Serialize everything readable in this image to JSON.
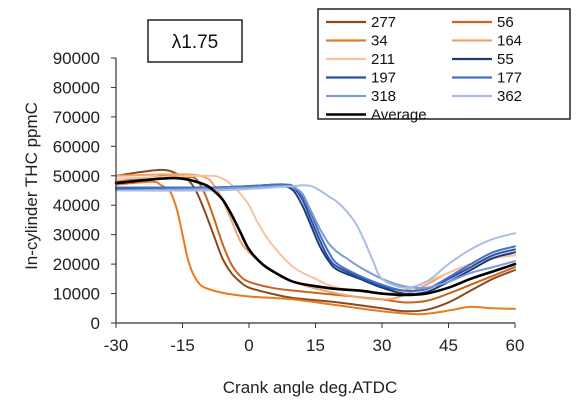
{
  "chart_data": {
    "type": "line",
    "title": "",
    "annotation": "λ1.75",
    "xlabel": "Crank angle deg.ATDC",
    "ylabel": "In-cylinder THC ppmC",
    "xlim": [
      -30,
      60
    ],
    "ylim": [
      0,
      90000
    ],
    "xticks": [
      "-30",
      "-15",
      "0",
      "15",
      "30",
      "45",
      "60"
    ],
    "yticks": [
      "0",
      "10000",
      "20000",
      "30000",
      "40000",
      "50000",
      "60000",
      "70000",
      "80000",
      "90000"
    ],
    "grid": false,
    "legend_position": "top-right",
    "series": [
      {
        "name": "277",
        "color": "#8a4a1e",
        "x": [
          -30,
          -20,
          -16,
          -14,
          -12,
          -10,
          -8,
          -6,
          -4,
          -2,
          0,
          5,
          10,
          20,
          30,
          35,
          40,
          45,
          50,
          55,
          60
        ],
        "y": [
          50000,
          52000,
          50500,
          49000,
          45000,
          38000,
          30000,
          22000,
          17000,
          14000,
          12000,
          10000,
          8500,
          7000,
          5000,
          4000,
          4500,
          7000,
          11000,
          15000,
          18000
        ]
      },
      {
        "name": "56",
        "color": "#c8641e",
        "x": [
          -30,
          -18,
          -14,
          -12,
          -10,
          -8,
          -6,
          -4,
          -2,
          0,
          5,
          10,
          20,
          30,
          35,
          40,
          45,
          50,
          55,
          60
        ],
        "y": [
          48000,
          50000,
          49500,
          49000,
          44000,
          36000,
          27000,
          20000,
          16000,
          14000,
          12000,
          11000,
          9500,
          8000,
          7000,
          7500,
          10000,
          13000,
          16000,
          19000
        ]
      },
      {
        "name": "34",
        "color": "#e87a20",
        "x": [
          -30,
          -22,
          -20,
          -18,
          -17,
          -16,
          -15,
          -14,
          -13,
          -12,
          -11,
          -10,
          -8,
          -5,
          0,
          10,
          20,
          30,
          38,
          42,
          46,
          50,
          55,
          60
        ],
        "y": [
          47000,
          48000,
          47000,
          45000,
          42000,
          37000,
          30000,
          23000,
          18000,
          15000,
          13000,
          12000,
          11000,
          10000,
          9000,
          8000,
          6000,
          4000,
          3000,
          3500,
          4500,
          5500,
          5000,
          4800
        ]
      },
      {
        "name": "164",
        "color": "#f3a36a",
        "x": [
          -30,
          -15,
          -10,
          -8,
          -6,
          -4,
          -2,
          0,
          5,
          10,
          20,
          30,
          35,
          40,
          45,
          50,
          55,
          60
        ],
        "y": [
          50000,
          50500,
          49500,
          47000,
          42000,
          35000,
          28000,
          24000,
          18000,
          14000,
          10000,
          8000,
          9500,
          13000,
          17000,
          20000,
          22000,
          24000
        ]
      },
      {
        "name": "211",
        "color": "#f6c3a2",
        "x": [
          -30,
          -10,
          -6,
          -4,
          -2,
          0,
          2,
          5,
          10,
          15,
          20,
          30,
          35,
          40,
          45,
          50,
          55,
          60
        ],
        "y": [
          49000,
          50000,
          49000,
          47000,
          44000,
          40000,
          34000,
          27000,
          19000,
          15000,
          12000,
          10000,
          11000,
          14000,
          17000,
          20000,
          22000,
          23000
        ]
      },
      {
        "name": "55",
        "color": "#1f3a7a",
        "x": [
          -30,
          -10,
          0,
          6,
          8,
          10,
          12,
          14,
          16,
          18,
          20,
          25,
          30,
          35,
          40,
          45,
          50,
          55,
          60
        ],
        "y": [
          46000,
          46000,
          46500,
          47000,
          46500,
          45000,
          40000,
          33000,
          26000,
          21000,
          18000,
          15000,
          12000,
          10000,
          10500,
          14000,
          18000,
          22000,
          24000
        ]
      },
      {
        "name": "197",
        "color": "#2a4fa0",
        "x": [
          -30,
          -10,
          0,
          6,
          8,
          10,
          12,
          14,
          16,
          18,
          20,
          25,
          30,
          35,
          40,
          45,
          50,
          55,
          60
        ],
        "y": [
          45500,
          45500,
          46000,
          47000,
          47000,
          46000,
          42000,
          35000,
          28000,
          22000,
          19000,
          15500,
          12500,
          11000,
          11500,
          15000,
          19000,
          23000,
          25000
        ]
      },
      {
        "name": "177",
        "color": "#4472c4",
        "x": [
          -30,
          -10,
          0,
          6,
          8,
          10,
          12,
          14,
          16,
          18,
          20,
          25,
          30,
          35,
          40,
          45,
          50,
          55,
          60
        ],
        "y": [
          46000,
          46000,
          46500,
          47000,
          47000,
          46500,
          43000,
          37000,
          30000,
          24000,
          20000,
          16000,
          13000,
          11000,
          11500,
          15500,
          20000,
          24000,
          26000
        ]
      },
      {
        "name": "318",
        "color": "#7f9bd6",
        "x": [
          -30,
          -10,
          0,
          8,
          10,
          12,
          14,
          16,
          18,
          20,
          22,
          25,
          30,
          35,
          40,
          45,
          50,
          55,
          60
        ],
        "y": [
          45000,
          45500,
          46000,
          46500,
          46000,
          44000,
          38000,
          32000,
          27000,
          24000,
          22000,
          19000,
          15000,
          12500,
          12000,
          14000,
          17000,
          19000,
          21000
        ]
      },
      {
        "name": "362",
        "color": "#a9bde6",
        "x": [
          -30,
          -10,
          0,
          10,
          12,
          14,
          16,
          18,
          20,
          22,
          24,
          26,
          28,
          30,
          35,
          40,
          45,
          50,
          55,
          60
        ],
        "y": [
          45000,
          45000,
          45500,
          46500,
          46800,
          46500,
          45000,
          43000,
          41000,
          38000,
          34000,
          28000,
          21000,
          15000,
          12000,
          14000,
          20000,
          25000,
          28500,
          30500
        ]
      },
      {
        "name": "Average",
        "color": "#000000",
        "x": [
          -30,
          -20,
          -15,
          -10,
          -8,
          -6,
          -4,
          -2,
          0,
          3,
          6,
          10,
          15,
          20,
          25,
          30,
          35,
          40,
          45,
          50,
          55,
          60
        ],
        "y": [
          47500,
          49000,
          49000,
          47000,
          45000,
          42000,
          37000,
          31000,
          25000,
          20000,
          17000,
          14000,
          12500,
          11500,
          11000,
          10000,
          9500,
          10000,
          12000,
          15000,
          17500,
          20000
        ]
      }
    ]
  }
}
